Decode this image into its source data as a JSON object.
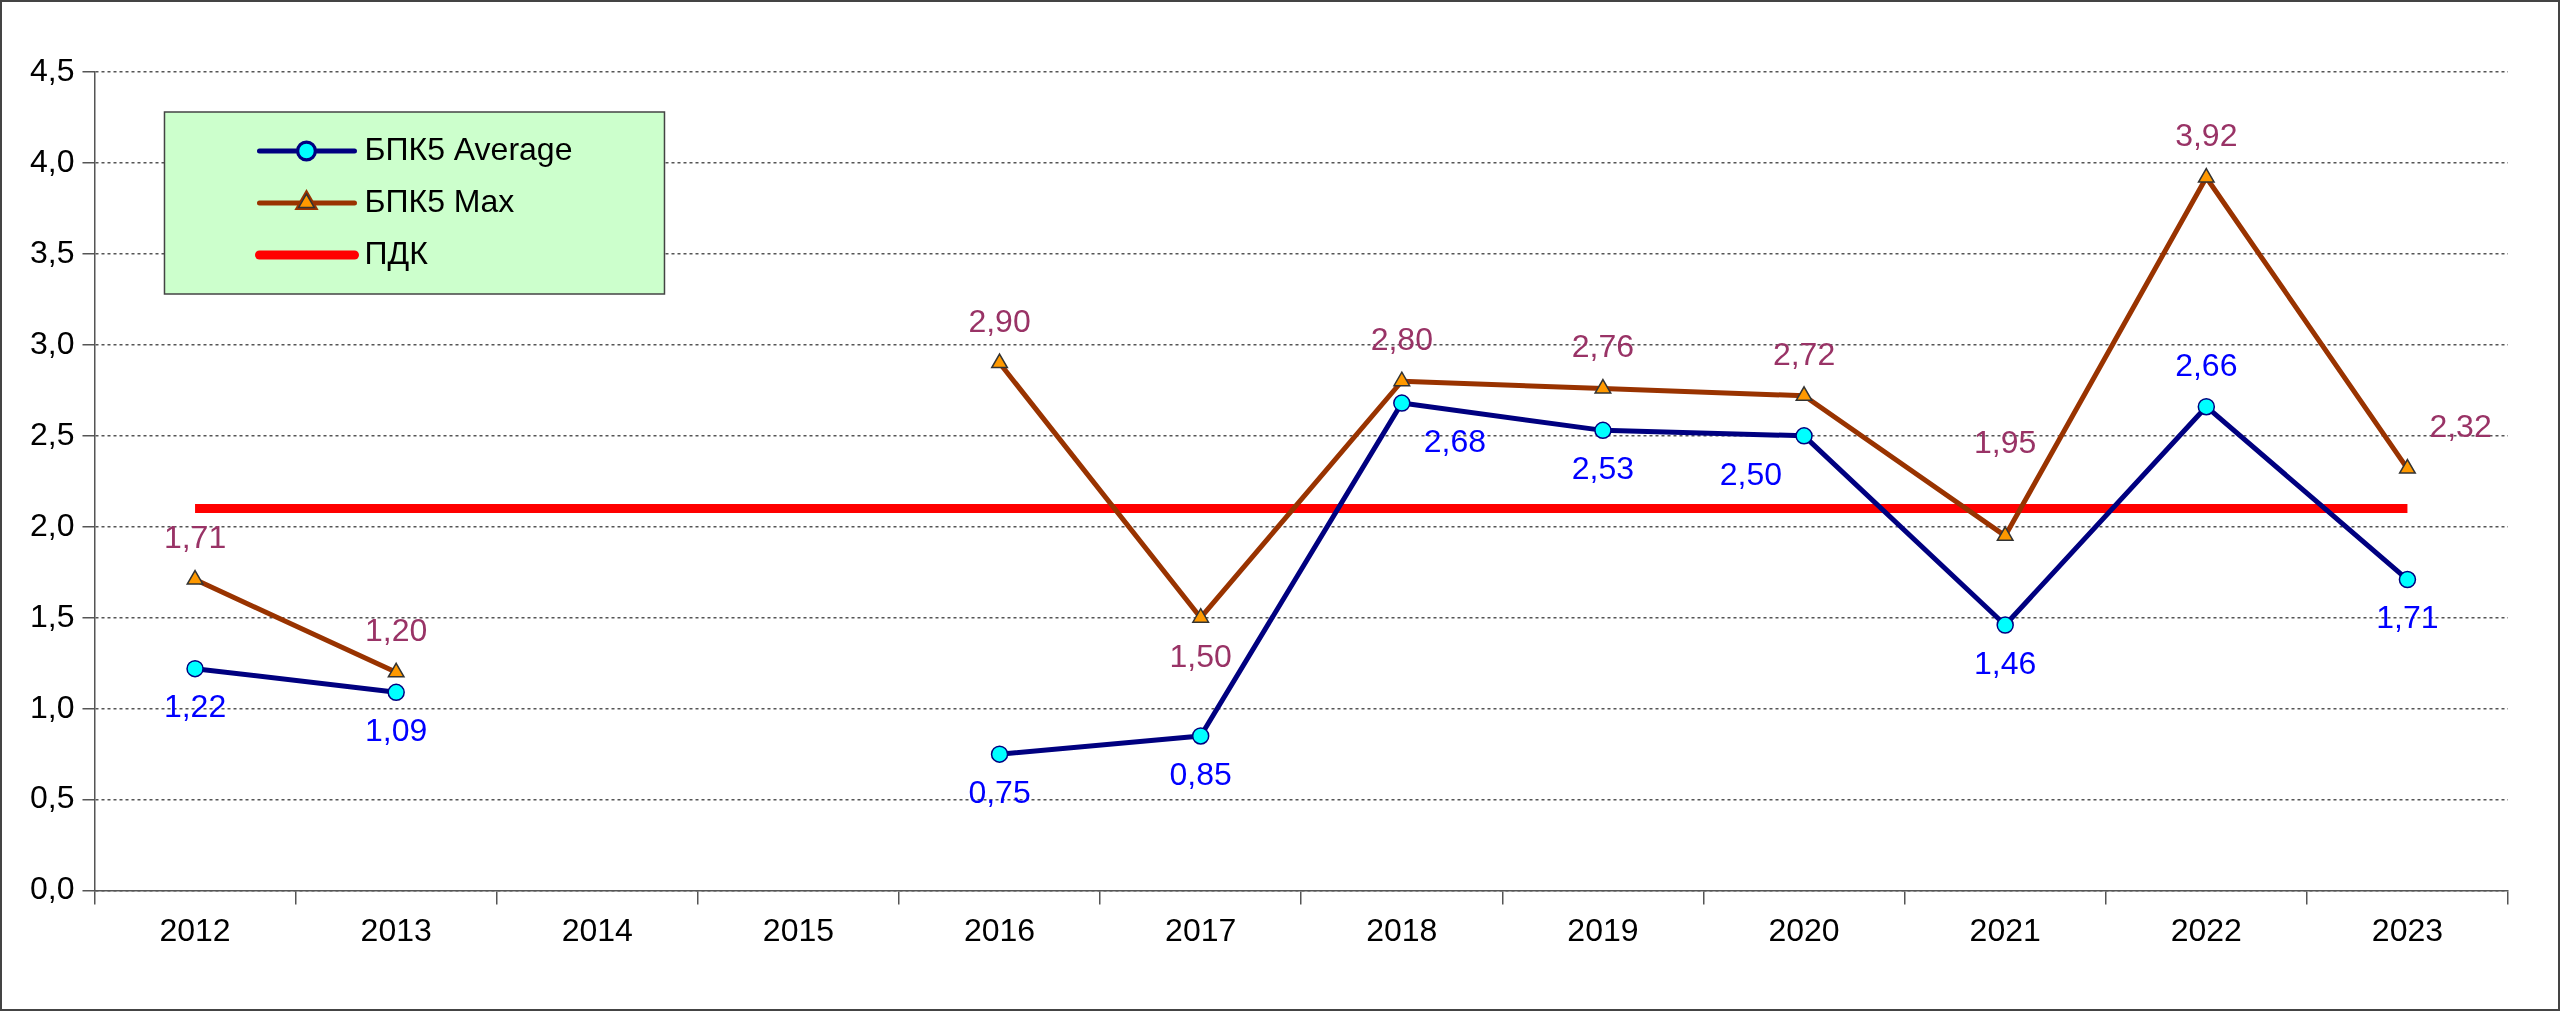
{
  "chart_data": {
    "type": "line",
    "categories": [
      "2012",
      "2013",
      "2014",
      "2015",
      "2016",
      "2017",
      "2018",
      "2019",
      "2020",
      "2021",
      "2022",
      "2023"
    ],
    "series": [
      {
        "name": "БПК5 Average",
        "color": "#000080",
        "marker": "circle",
        "values": [
          1.22,
          1.09,
          null,
          null,
          0.75,
          0.85,
          2.68,
          2.53,
          2.5,
          1.46,
          2.66,
          1.71
        ],
        "value_labels": [
          "1,22",
          "1,09",
          null,
          null,
          "0,75",
          "0,85",
          "2,68",
          "2,53",
          "2,50",
          "1,46",
          "2,66",
          "1,71"
        ]
      },
      {
        "name": "БПК5 Max",
        "color": "#993300",
        "marker": "triangle",
        "values": [
          1.71,
          1.2,
          null,
          null,
          2.9,
          1.5,
          2.8,
          2.76,
          2.72,
          1.95,
          3.92,
          2.32
        ],
        "value_labels": [
          "1,71",
          "1,20",
          null,
          null,
          "2,90",
          "1,50",
          "2,80",
          "2,76",
          "2,72",
          "1,95",
          "3,92",
          "2,32"
        ]
      },
      {
        "name": "ПДК",
        "color": "#ff0000",
        "marker": "none",
        "values": [
          2.1,
          2.1,
          2.1,
          2.1,
          2.1,
          2.1,
          2.1,
          2.1,
          2.1,
          2.1,
          2.1,
          2.1
        ]
      }
    ],
    "ylim": [
      0,
      4.5
    ],
    "yticks": [
      {
        "value": 0,
        "label": "0,0"
      },
      {
        "value": 0.5,
        "label": "0,5"
      },
      {
        "value": 1,
        "label": "1,0"
      },
      {
        "value": 1.5,
        "label": "1,5"
      },
      {
        "value": 2,
        "label": "2,0"
      },
      {
        "value": 2.5,
        "label": "2,5"
      },
      {
        "value": 3,
        "label": "3,0"
      },
      {
        "value": 3.5,
        "label": "3,5"
      },
      {
        "value": 4,
        "label": "4,0"
      },
      {
        "value": 4.5,
        "label": "4,5"
      }
    ],
    "grid": "y",
    "legend": "top left",
    "line_style": "solid"
  }
}
